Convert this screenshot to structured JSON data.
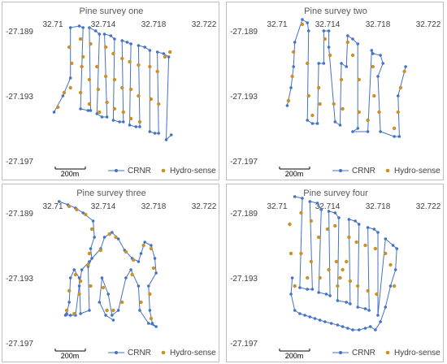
{
  "colors": {
    "crnr": "#4472c4",
    "hydro": "#c9912a",
    "axis_text": "#404040",
    "border": "#bfbfbf"
  },
  "chart_data": [
    {
      "type": "scatter",
      "title": "Pine survey one",
      "x_ticks": [
        "32.71",
        "32.714",
        "32.718",
        "32.722"
      ],
      "y_ticks": [
        "-27.189",
        "-27.193",
        "-27.197"
      ],
      "xlim": [
        32.71,
        32.722
      ],
      "ylim": [
        -27.197,
        -27.189
      ],
      "grid": false,
      "legend_position": "bottom",
      "scale_label": "200m",
      "series": [
        {
          "name": "CRNR",
          "mode": "lines+markers",
          "x": [
            32.7101,
            32.7108,
            32.7114,
            32.7114,
            32.7121,
            32.7124,
            32.7122,
            32.7128,
            32.713,
            32.7129,
            32.7134,
            32.7137,
            32.7135,
            32.7139,
            32.7143,
            32.7141,
            32.7146,
            32.7149,
            32.7148,
            32.7153,
            32.7156,
            32.7155,
            32.7159,
            32.7162,
            32.7161,
            32.7166,
            32.7169,
            32.7168,
            32.7173,
            32.7177,
            32.7177,
            32.7181,
            32.7184,
            32.7183,
            32.7188,
            32.7192,
            32.719,
            32.7194
          ],
          "y": [
            -27.194,
            -27.193,
            -27.1919,
            -27.1888,
            -27.1887,
            -27.1888,
            -27.1938,
            -27.1939,
            -27.1939,
            -27.1888,
            -27.189,
            -27.1892,
            -27.1941,
            -27.1943,
            -27.1943,
            -27.1892,
            -27.1893,
            -27.1895,
            -27.1945,
            -27.1946,
            -27.1946,
            -27.1896,
            -27.1897,
            -27.1898,
            -27.1948,
            -27.1949,
            -27.1949,
            -27.1899,
            -27.19,
            -27.1902,
            -27.1952,
            -27.1953,
            -27.1953,
            -27.1903,
            -27.1904,
            -27.1906,
            -27.1957,
            -27.1954
          ]
        },
        {
          "name": "Hydro-sense",
          "mode": "markers",
          "x": [
            32.7104,
            32.7109,
            32.7113,
            32.7115,
            32.7114,
            32.7122,
            32.7123,
            32.7122,
            32.7124,
            32.7129,
            32.7129,
            32.713,
            32.7135,
            32.7136,
            32.7137,
            32.7142,
            32.7142,
            32.7143,
            32.7148,
            32.7149,
            32.7149,
            32.7155,
            32.7155,
            32.7156,
            32.7161,
            32.7162,
            32.7162,
            32.7168,
            32.7168,
            32.7169,
            32.7177,
            32.7178,
            32.7183,
            32.7184,
            32.7189,
            32.7193
          ],
          "y": [
            -27.1937,
            -27.1928,
            -27.19,
            -27.191,
            -27.1925,
            -27.1895,
            -27.1912,
            -27.1928,
            -27.1906,
            -27.192,
            -27.1935,
            -27.1898,
            -27.1912,
            -27.1926,
            -27.194,
            -27.19,
            -27.1918,
            -27.1934,
            -27.1904,
            -27.192,
            -27.1938,
            -27.1907,
            -27.1925,
            -27.194,
            -27.1909,
            -27.1926,
            -27.1944,
            -27.1911,
            -27.193,
            -27.1946,
            -27.1912,
            -27.1932,
            -27.1915,
            -27.1935,
            -27.1906,
            -27.1903
          ]
        }
      ]
    },
    {
      "type": "scatter",
      "title": "Pine survey two",
      "x_ticks": [
        "32.71",
        "32.714",
        "32.718",
        "32.722"
      ],
      "y_ticks": [
        "-27.189",
        "-27.193",
        "-27.197"
      ],
      "xlim": [
        32.71,
        32.722
      ],
      "ylim": [
        -27.197,
        -27.189
      ],
      "grid": false,
      "legend_position": "bottom",
      "scale_label": "200m",
      "series": [
        {
          "name": "CRNR",
          "mode": "lines+markers",
          "x": [
            32.7108,
            32.7111,
            32.7113,
            32.7114,
            32.712,
            32.7124,
            32.7125,
            32.7124,
            32.7128,
            32.7132,
            32.7133,
            32.7137,
            32.7137,
            32.7141,
            32.7141,
            32.7146,
            32.715,
            32.7151,
            32.7155,
            32.7156,
            32.716,
            32.7164,
            32.7164,
            32.716,
            32.7172,
            32.7175,
            32.7176,
            32.7182,
            32.7184,
            32.718,
            32.7182,
            32.7193,
            32.7197,
            32.7196,
            32.7201,
            32.7202
          ],
          "y": [
            -27.1936,
            -27.1925,
            -27.1912,
            -27.1897,
            -27.1883,
            -27.1885,
            -27.189,
            -27.1945,
            -27.1947,
            -27.1947,
            -27.191,
            -27.191,
            -27.189,
            -27.189,
            -27.19,
            -27.1946,
            -27.1948,
            -27.191,
            -27.1912,
            -27.1893,
            -27.1895,
            -27.1898,
            -27.195,
            -27.1952,
            -27.1952,
            -27.1902,
            -27.1904,
            -27.1905,
            -27.191,
            -27.1918,
            -27.1952,
            -27.1955,
            -27.1955,
            -27.193,
            -27.1915,
            -27.1912
          ]
        },
        {
          "name": "Hydro-sense",
          "mode": "markers",
          "x": [
            32.7109,
            32.7112,
            32.7113,
            32.712,
            32.7124,
            32.7125,
            32.7128,
            32.7133,
            32.7134,
            32.7138,
            32.7142,
            32.7145,
            32.7151,
            32.7152,
            32.7156,
            32.716,
            32.7165,
            32.7165,
            32.7172,
            32.7176,
            32.7177,
            32.7181,
            32.7193,
            32.7196,
            32.7198,
            32.7201
          ],
          "y": [
            -27.1933,
            -27.1918,
            -27.1903,
            -27.1886,
            -27.191,
            -27.193,
            -27.1942,
            -27.1925,
            -27.1935,
            -27.1895,
            -27.1905,
            -27.1935,
            -27.192,
            -27.1938,
            -27.1897,
            -27.1905,
            -27.192,
            -27.194,
            -27.1945,
            -27.1912,
            -27.193,
            -27.194,
            -27.195,
            -27.194,
            -27.1925,
            -27.1915
          ]
        }
      ]
    },
    {
      "type": "scatter",
      "title": "Pine survey three",
      "x_ticks": [
        "32.71",
        "32.714",
        "32.718",
        "32.722"
      ],
      "y_ticks": [
        "-27.189",
        "-27.193",
        "-27.197"
      ],
      "xlim": [
        32.71,
        32.722
      ],
      "ylim": [
        -27.197,
        -27.189
      ],
      "grid": false,
      "legend_position": "bottom",
      "scale_label": "200m",
      "series": [
        {
          "name": "CRNR",
          "mode": "lines+markers",
          "x": [
            32.7105,
            32.7112,
            32.7118,
            32.7124,
            32.7132,
            32.7133,
            32.713,
            32.7131,
            32.7128,
            32.7129,
            32.7122,
            32.7121,
            32.7117,
            32.7114,
            32.7113,
            32.7111,
            32.711,
            32.7114,
            32.7118,
            32.7121,
            32.7123,
            32.7129,
            32.7138,
            32.7141,
            32.7147,
            32.7152,
            32.7157,
            32.7163,
            32.7168,
            32.717,
            32.7173,
            32.7178,
            32.7181,
            32.7182,
            32.7176,
            32.7177,
            32.7179,
            32.7182,
            32.7176,
            32.7169,
            32.7168,
            32.7162,
            32.7158,
            32.7152,
            32.7147,
            32.7144,
            32.7139,
            32.7137,
            32.7142,
            32.7148
          ],
          "y": [
            -27.1883,
            -27.1885,
            -27.1887,
            -27.189,
            -27.1895,
            -27.1905,
            -27.1912,
            -27.1918,
            -27.1923,
            -27.195,
            -27.1952,
            -27.193,
            -27.1925,
            -27.193,
            -27.1945,
            -27.1952,
            -27.1953,
            -27.1953,
            -27.1953,
            -27.1935,
            -27.1925,
            -27.192,
            -27.1912,
            -27.1905,
            -27.1902,
            -27.1906,
            -27.1913,
            -27.1918,
            -27.192,
            -27.1915,
            -27.1908,
            -27.191,
            -27.1918,
            -27.1927,
            -27.1935,
            -27.195,
            -27.1958,
            -27.196,
            -27.1958,
            -27.195,
            -27.1935,
            -27.1925,
            -27.193,
            -27.195,
            -27.1953,
            -27.194,
            -27.193,
            -27.1945,
            -27.1953,
            -27.1956
          ]
        },
        {
          "name": "Hydro-sense",
          "mode": "markers",
          "x": [
            32.7113,
            32.7119,
            32.7126,
            32.7131,
            32.7129,
            32.713,
            32.7121,
            32.7118,
            32.7113,
            32.7111,
            32.7117,
            32.7122,
            32.7128,
            32.7138,
            32.7145,
            32.715,
            32.7158,
            32.7164,
            32.7172,
            32.7178,
            32.718,
            32.7177,
            32.7178,
            32.717,
            32.7163,
            32.7155,
            32.7148,
            32.714,
            32.7143
          ],
          "y": [
            -27.1886,
            -27.1888,
            -27.1891,
            -27.19,
            -27.1915,
            -27.1935,
            -27.194,
            -27.1928,
            -27.1938,
            -27.195,
            -27.1952,
            -27.1932,
            -27.1922,
            -27.1913,
            -27.1903,
            -27.1905,
            -27.1914,
            -27.1919,
            -27.191,
            -27.1912,
            -27.1924,
            -27.194,
            -27.1955,
            -27.1945,
            -27.1928,
            -27.1945,
            -27.195,
            -27.1936,
            -27.195
          ]
        }
      ]
    },
    {
      "type": "scatter",
      "title": "Pine survey four",
      "x_ticks": [
        "32.71",
        "32.714",
        "32.718",
        "32.722"
      ],
      "y_ticks": [
        "-27.189",
        "-27.193",
        "-27.197"
      ],
      "xlim": [
        32.71,
        32.722
      ],
      "ylim": [
        -27.197,
        -27.189
      ],
      "grid": false,
      "legend_position": "bottom",
      "scale_label": "200m",
      "series": [
        {
          "name": "CRNR",
          "mode": "lines+markers",
          "x": [
            32.7114,
            32.712,
            32.7118,
            32.7124,
            32.7128,
            32.7126,
            32.7132,
            32.7135,
            32.7133,
            32.7139,
            32.7142,
            32.7141,
            32.7146,
            32.7149,
            32.7148,
            32.7155,
            32.7158,
            32.7157,
            32.7162,
            32.7165,
            32.7164,
            32.717,
            32.7173,
            32.7172,
            32.7177,
            32.718,
            32.718,
            32.7186,
            32.7192,
            32.7195,
            32.7194,
            32.719,
            32.7186,
            32.7182,
            32.7178,
            32.7174,
            32.717,
            32.7165,
            32.716,
            32.7156,
            32.7152,
            32.7148,
            32.7143,
            32.7138,
            32.7134,
            32.713,
            32.7126,
            32.7122,
            32.7118,
            32.7114,
            32.7111,
            32.7112
          ],
          "y": [
            -27.188,
            -27.1881,
            -27.1936,
            -27.1937,
            -27.1937,
            -27.1883,
            -27.1884,
            -27.1888,
            -27.1939,
            -27.194,
            -27.1941,
            -27.1889,
            -27.189,
            -27.1893,
            -27.1944,
            -27.1945,
            -27.1946,
            -27.1894,
            -27.1895,
            -27.1897,
            -27.1948,
            -27.1949,
            -27.195,
            -27.1899,
            -27.19,
            -27.1902,
            -27.1953,
            -27.1906,
            -27.191,
            -27.1912,
            -27.1925,
            -27.1935,
            -27.1948,
            -27.1957,
            -27.1962,
            -27.196,
            -27.1961,
            -27.1962,
            -27.1962,
            -27.1961,
            -27.196,
            -27.1959,
            -27.1958,
            -27.1957,
            -27.1956,
            -27.1955,
            -27.1954,
            -27.1953,
            -27.1952,
            -27.195,
            -27.194,
            -27.193
          ]
        },
        {
          "name": "Hydro-sense",
          "mode": "markers",
          "x": [
            32.711,
            32.7111,
            32.7114,
            32.7119,
            32.7119,
            32.7124,
            32.7127,
            32.7127,
            32.7133,
            32.7134,
            32.714,
            32.7141,
            32.7146,
            32.7147,
            32.7148,
            32.715,
            32.7152,
            32.7155,
            32.7157,
            32.7158,
            32.7163,
            32.7164,
            32.717,
            32.7172,
            32.7178,
            32.7179,
            32.7186,
            32.719,
            32.7193
          ],
          "y": [
            -27.1897,
            -27.1915,
            -27.1935,
            -27.189,
            -27.1915,
            -27.193,
            -27.1895,
            -27.192,
            -27.1905,
            -27.193,
            -27.19,
            -27.1925,
            -27.1898,
            -27.192,
            -27.1935,
            -27.193,
            -27.1925,
            -27.192,
            -27.1905,
            -27.1932,
            -27.1908,
            -27.1935,
            -27.191,
            -27.1938,
            -27.1912,
            -27.194,
            -27.1915,
            -27.1922,
            -27.1935
          ]
        }
      ]
    }
  ]
}
